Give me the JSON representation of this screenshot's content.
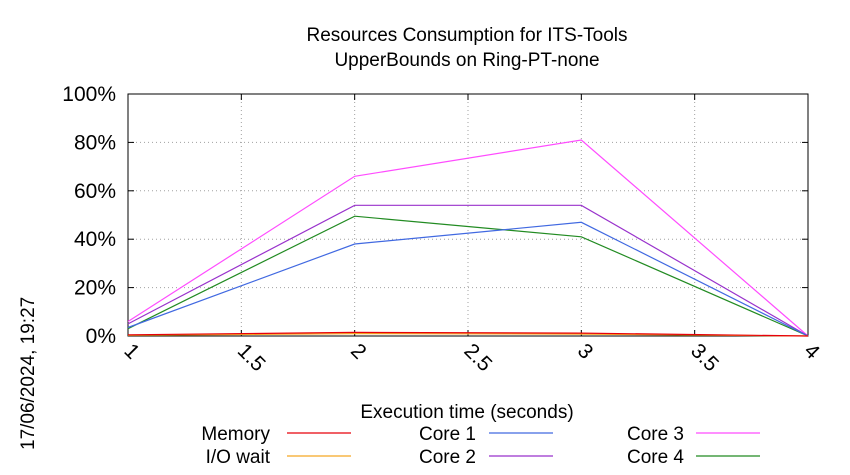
{
  "chart_data": {
    "type": "line",
    "title": "Resources Consumption for ITS-Tools",
    "subtitle": "UpperBounds on Ring-PT-none",
    "xlabel": "Execution time (seconds)",
    "ylabel": "",
    "xlim": [
      1,
      4
    ],
    "ylim": [
      0,
      100
    ],
    "x_ticks": [
      "1",
      "1.5",
      "2",
      "2.5",
      "3",
      "3.5",
      "4"
    ],
    "y_ticks": [
      "0%",
      "20%",
      "40%",
      "60%",
      "80%",
      "100%"
    ],
    "grid": true,
    "legend_position": "bottom",
    "x": [
      1,
      2,
      3,
      4
    ],
    "series": [
      {
        "name": "Memory",
        "color": "#e8000b",
        "values": [
          0.5,
          1.5,
          1.2,
          0
        ]
      },
      {
        "name": "I/O wait",
        "color": "#f5a623",
        "values": [
          0.3,
          1.0,
          0.8,
          0
        ]
      },
      {
        "name": "Core 1",
        "color": "#4169e1",
        "values": [
          3.5,
          38,
          47,
          0
        ]
      },
      {
        "name": "Core 2",
        "color": "#9932cc",
        "values": [
          5,
          54,
          54,
          0
        ]
      },
      {
        "name": "Core 3",
        "color": "#ff4cff",
        "values": [
          6,
          66,
          81,
          0
        ]
      },
      {
        "name": "Core 4",
        "color": "#228b22",
        "values": [
          3,
          49.5,
          41,
          0
        ]
      }
    ]
  },
  "timestamp": "17/06/2024, 19:27"
}
